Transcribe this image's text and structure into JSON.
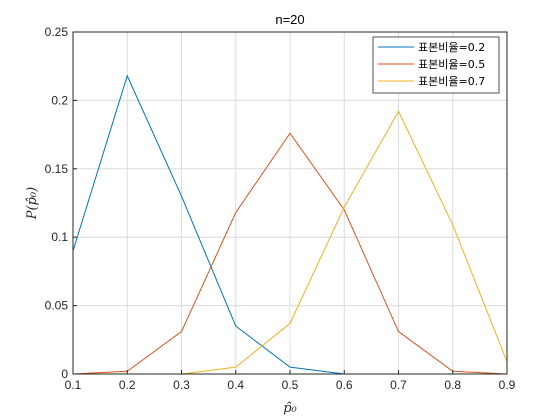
{
  "chart_data": {
    "type": "line",
    "title": "n=20",
    "xlabel": "p̂₀",
    "ylabel": "P(p̂₀)",
    "xlim": [
      0.1,
      0.9
    ],
    "ylim": [
      0,
      0.25
    ],
    "xticks": [
      "0.1",
      "0.2",
      "0.3",
      "0.4",
      "0.5",
      "0.6",
      "0.7",
      "0.8",
      "0.9"
    ],
    "yticks": [
      "0",
      "0.05",
      "0.1",
      "0.15",
      "0.2",
      "0.25"
    ],
    "grid": true,
    "legend_position": "top-right",
    "x": [
      0.1,
      0.2,
      0.3,
      0.4,
      0.5,
      0.6,
      0.7,
      0.8,
      0.9
    ],
    "series": [
      {
        "name": "표본비율=0.2",
        "color": "#0072BD",
        "values": [
          0.09,
          0.218,
          0.13,
          0.035,
          0.005,
          0.0,
          0.0,
          0.0,
          0.0
        ]
      },
      {
        "name": "표본비율=0.5",
        "color": "#D95319",
        "values": [
          0.0,
          0.002,
          0.031,
          0.118,
          0.176,
          0.12,
          0.031,
          0.002,
          0.0
        ]
      },
      {
        "name": "표본비율=0.7",
        "color": "#EDB120",
        "values": [
          0.0,
          0.0,
          0.0,
          0.005,
          0.037,
          0.122,
          0.192,
          0.109,
          0.009
        ]
      }
    ]
  }
}
